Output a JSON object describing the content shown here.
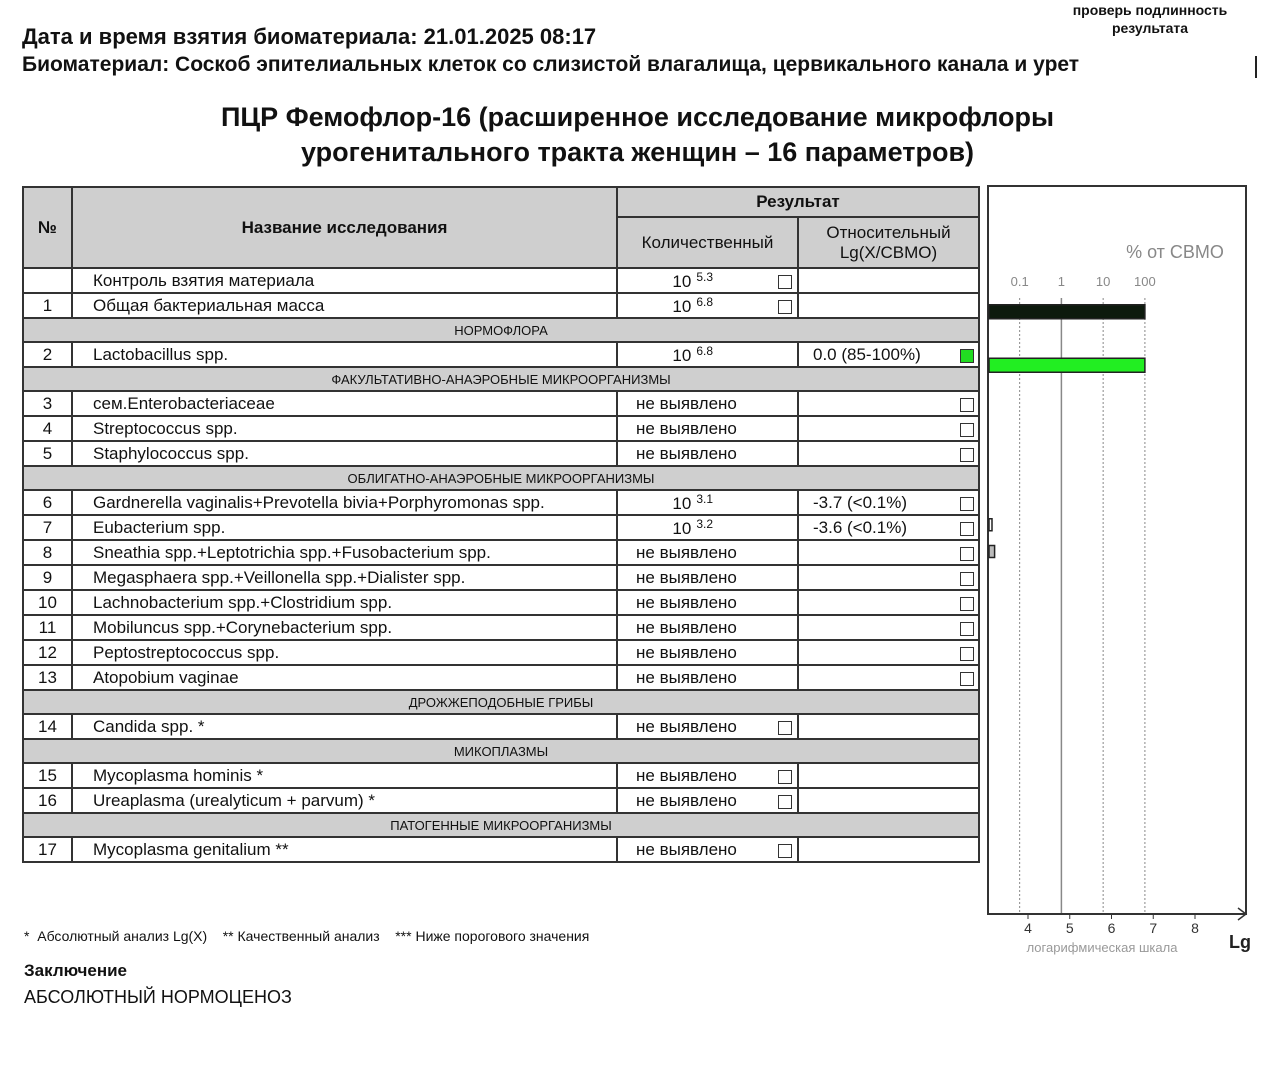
{
  "header": {
    "verify_link": "проверь подлинность результата",
    "date_line": "Дата и время взятия биоматериала: 21.01.2025 08:17",
    "biomaterial_line": "Биоматериал: Соскоб эпителиальных клеток со слизистой влагалища, цервикального канала и урет"
  },
  "title_line1": "ПЦР Фемофлор-16 (расширенное исследование микрофлоры",
  "title_line2": "урогенитального тракта женщин – 16 параметров)",
  "table": {
    "col_no": "№",
    "col_name": "Название исследования",
    "col_result": "Результат",
    "col_quant": "Количественный",
    "col_rel_1": "Относительный",
    "col_rel_2": "Lg(X/CBMO)",
    "rows": [
      {
        "type": "row",
        "no": "",
        "name": "Контроль взятия материала",
        "base": "10",
        "exp": "5.3",
        "rel": "",
        "cb": "quant"
      },
      {
        "type": "row",
        "no": "1",
        "name": "Общая бактериальная масса",
        "base": "10",
        "exp": "6.8",
        "rel": "",
        "cb": "quant"
      },
      {
        "type": "section",
        "name": "НОРМОФЛОРА"
      },
      {
        "type": "row",
        "no": "2",
        "name": "Lactobacillus spp.",
        "base": "10",
        "exp": "6.8",
        "rel": "0.0 (85-100%)",
        "cb": "rel-green"
      },
      {
        "type": "section",
        "name": "ФАКУЛЬТАТИВНО-АНАЭРОБНЫЕ МИКРООРГАНИЗМЫ"
      },
      {
        "type": "row",
        "no": "3",
        "name": "сем.Enterobacteriaceae",
        "text": "не выявлено",
        "rel": "",
        "cb": "rel"
      },
      {
        "type": "row",
        "no": "4",
        "name": "Streptococcus spp.",
        "text": "не выявлено",
        "rel": "",
        "cb": "rel"
      },
      {
        "type": "row",
        "no": "5",
        "name": "Staphylococcus spp.",
        "text": "не выявлено",
        "rel": "",
        "cb": "rel"
      },
      {
        "type": "section",
        "name": "ОБЛИГАТНО-АНАЭРОБНЫЕ МИКРООРГАНИЗМЫ"
      },
      {
        "type": "row",
        "no": "6",
        "name": "Gardnerella vaginalis+Prevotella bivia+Porphyromonas spp.",
        "base": "10",
        "exp": "3.1",
        "rel": "-3.7 (<0.1%)",
        "cb": "rel"
      },
      {
        "type": "row",
        "no": "7",
        "name": "Eubacterium spp.",
        "base": "10",
        "exp": "3.2",
        "rel": "-3.6 (<0.1%)",
        "cb": "rel"
      },
      {
        "type": "row",
        "no": "8",
        "name": "Sneathia spp.+Leptotrichia spp.+Fusobacterium spp.",
        "text": "не выявлено",
        "rel": "",
        "cb": "rel"
      },
      {
        "type": "row",
        "no": "9",
        "name": "Megasphaera spp.+Veillonella spp.+Dialister spp.",
        "text": "не выявлено",
        "rel": "",
        "cb": "rel"
      },
      {
        "type": "row",
        "no": "10",
        "name": "Lachnobacterium spp.+Clostridium spp.",
        "text": "не выявлено",
        "rel": "",
        "cb": "rel"
      },
      {
        "type": "row",
        "no": "11",
        "name": "Mobiluncus spp.+Corynebacterium spp.",
        "text": "не выявлено",
        "rel": "",
        "cb": "rel"
      },
      {
        "type": "row",
        "no": "12",
        "name": "Peptostreptococcus spp.",
        "text": "не выявлено",
        "rel": "",
        "cb": "rel"
      },
      {
        "type": "row",
        "no": "13",
        "name": "Atopobium vaginae",
        "text": "не выявлено",
        "rel": "",
        "cb": "rel"
      },
      {
        "type": "section",
        "name": "ДРОЖЖЕПОДОБНЫЕ ГРИБЫ"
      },
      {
        "type": "row",
        "no": "14",
        "name": "Candida spp. *",
        "text": "не выявлено",
        "rel": "",
        "cb": "quant"
      },
      {
        "type": "section",
        "name": "МИКОПЛАЗМЫ"
      },
      {
        "type": "row",
        "no": "15",
        "name": "Mycoplasma hominis *",
        "text": "не выявлено",
        "rel": "",
        "cb": "quant"
      },
      {
        "type": "row",
        "no": "16",
        "name": "Ureaplasma (urealyticum + parvum) *",
        "text": "не выявлено",
        "rel": "",
        "cb": "quant"
      },
      {
        "type": "section",
        "name": "ПАТОГЕННЫЕ МИКРООРГАНИЗМЫ"
      },
      {
        "type": "row",
        "no": "17",
        "name": "Mycoplasma genitalium **",
        "text": "не выявлено",
        "rel": "",
        "cb": "quant"
      }
    ]
  },
  "chart": {
    "top_label": "% от СВМО",
    "percent_ticks": [
      {
        "label": "0.1",
        "lg": 3.8
      },
      {
        "label": "1",
        "lg": 4.8
      },
      {
        "label": "10",
        "lg": 5.8
      },
      {
        "label": "100",
        "lg": 6.8
      }
    ],
    "lg_ticks": [
      "4",
      "5",
      "6",
      "7",
      "8"
    ],
    "axis_label": "Lg",
    "scale_label": "логарифмическая шкала",
    "bars": [
      {
        "row": 1,
        "lg": 6.8,
        "color": "#0d1a0d"
      },
      {
        "row": 3,
        "lg": 6.8,
        "color": "#22ee22"
      },
      {
        "row": 9,
        "lg": 3.1,
        "color": "#ffffff"
      },
      {
        "row": 10,
        "lg": 3.2,
        "color": "#bbbbbb"
      }
    ]
  },
  "footnotes": "*  Абсолютный анализ Lg(X)    ** Качественный анализ    *** Ниже порогового значения",
  "conclusion_heading": "Заключение",
  "conclusion": "АБСОЛЮТНЫЙ НОРМОЦЕНОЗ"
}
